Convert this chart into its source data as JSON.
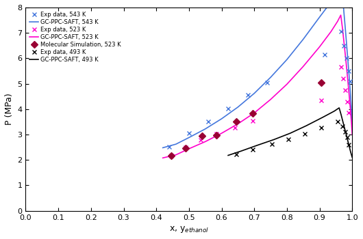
{
  "xlabel": "x, y$_{ethanol}$",
  "ylabel": "P (MPa)",
  "xlim": [
    0,
    1.0
  ],
  "ylim": [
    0.0,
    8.0
  ],
  "xticks": [
    0,
    0.1,
    0.2,
    0.3,
    0.4,
    0.5,
    0.6,
    0.7,
    0.8,
    0.9,
    1.0
  ],
  "yticks": [
    0.0,
    1.0,
    2.0,
    3.0,
    4.0,
    5.0,
    6.0,
    7.0,
    8.0
  ],
  "exp_543_x": [
    0.44,
    0.5,
    0.56,
    0.62,
    0.68,
    0.74,
    0.915,
    0.965,
    0.975,
    0.982,
    0.988,
    0.993
  ],
  "exp_543_y": [
    2.52,
    3.05,
    3.52,
    4.02,
    4.55,
    5.05,
    6.15,
    7.05,
    6.5,
    6.0,
    5.5,
    5.1
  ],
  "saft_543_bubble_x": [
    0.42,
    0.46,
    0.5,
    0.55,
    0.6,
    0.65,
    0.7,
    0.75,
    0.8,
    0.85,
    0.9,
    0.94,
    0.962,
    0.968
  ],
  "saft_543_bubble_y": [
    2.48,
    2.62,
    2.88,
    3.22,
    3.62,
    4.08,
    4.62,
    5.25,
    5.95,
    6.75,
    7.62,
    8.3,
    8.6,
    8.75
  ],
  "saft_543_dew_x": [
    0.968,
    0.972,
    0.976,
    0.98,
    0.985,
    0.99,
    0.994,
    0.997,
    1.0
  ],
  "saft_543_dew_y": [
    8.75,
    8.2,
    7.6,
    7.0,
    6.2,
    5.4,
    4.7,
    4.1,
    3.5
  ],
  "exp_523_x": [
    0.445,
    0.49,
    0.535,
    0.585,
    0.64,
    0.695,
    0.905,
    0.965,
    0.972,
    0.978,
    0.984,
    0.99
  ],
  "exp_523_y": [
    2.18,
    2.48,
    2.78,
    3.02,
    3.28,
    3.55,
    4.35,
    5.65,
    5.2,
    4.75,
    4.3,
    3.85
  ],
  "saft_523_bubble_x": [
    0.42,
    0.46,
    0.5,
    0.55,
    0.6,
    0.65,
    0.7,
    0.75,
    0.8,
    0.85,
    0.9,
    0.935,
    0.955,
    0.965
  ],
  "saft_523_bubble_y": [
    2.08,
    2.2,
    2.44,
    2.72,
    3.05,
    3.42,
    3.85,
    4.38,
    4.98,
    5.68,
    6.45,
    7.05,
    7.45,
    7.7
  ],
  "saft_523_dew_x": [
    0.965,
    0.97,
    0.975,
    0.98,
    0.986,
    0.991,
    0.995,
    0.998,
    1.0
  ],
  "saft_523_dew_y": [
    7.7,
    7.2,
    6.6,
    6.0,
    5.2,
    4.5,
    3.9,
    3.4,
    3.0
  ],
  "mol_523_x": [
    0.445,
    0.49,
    0.54,
    0.585,
    0.645,
    0.695,
    0.905
  ],
  "mol_523_y": [
    2.18,
    2.45,
    2.95,
    2.98,
    3.5,
    3.82,
    5.05
  ],
  "exp_493_x": [
    0.645,
    0.695,
    0.755,
    0.805,
    0.855,
    0.905,
    0.955,
    0.97,
    0.978,
    0.984,
    0.99
  ],
  "exp_493_y": [
    2.22,
    2.42,
    2.62,
    2.82,
    3.02,
    3.28,
    3.52,
    3.32,
    3.1,
    2.88,
    2.6
  ],
  "saft_493_bubble_x": [
    0.62,
    0.66,
    0.71,
    0.76,
    0.81,
    0.86,
    0.91,
    0.945,
    0.96
  ],
  "saft_493_bubble_y": [
    2.18,
    2.35,
    2.58,
    2.8,
    3.05,
    3.35,
    3.68,
    3.92,
    4.05
  ],
  "saft_493_dew_x": [
    0.96,
    0.966,
    0.972,
    0.978,
    0.984,
    0.99,
    0.995,
    1.0
  ],
  "saft_493_dew_y": [
    4.05,
    3.78,
    3.48,
    3.18,
    2.88,
    2.58,
    2.32,
    2.1
  ],
  "color_543": "#4477dd",
  "color_523": "#ff00cc",
  "color_493": "#000000",
  "color_mol": "#990033",
  "legend_labels": [
    "Exp data, 543 K",
    "GC-PPC-SAFT, 543 K",
    "Exp data, 523 K",
    "GC-PPC-SAFT, 523 K",
    "Molecular Simulation, 523 K",
    "Exp data, 493 K",
    "GC-PPC-SAFT, 493 K"
  ]
}
